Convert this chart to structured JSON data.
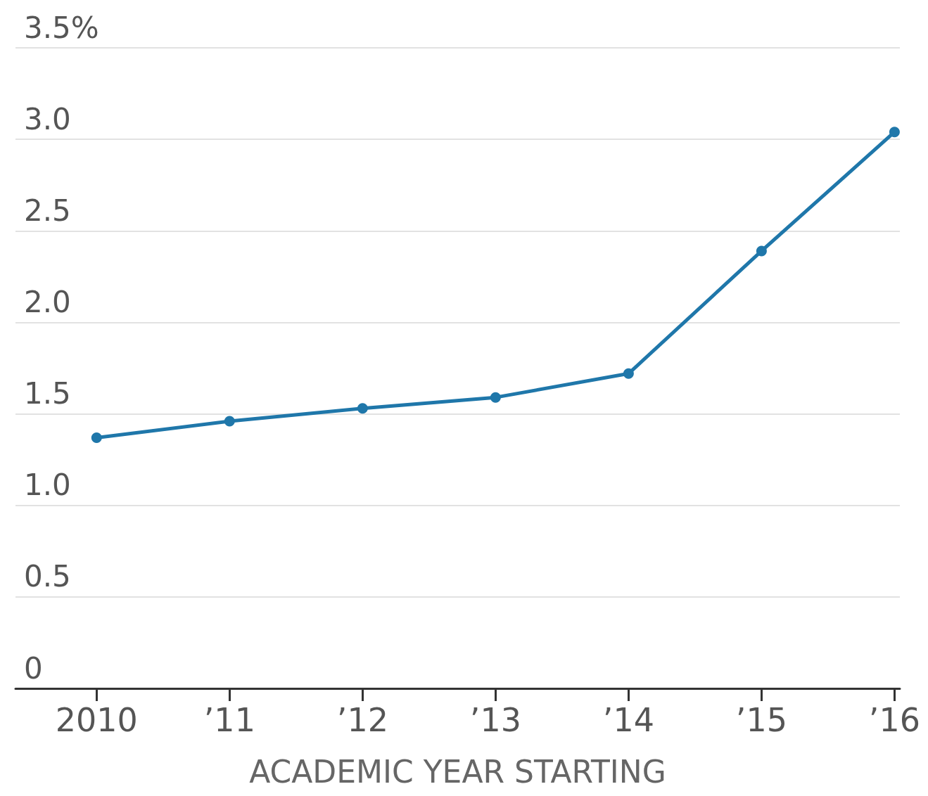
{
  "chart_data": {
    "type": "line",
    "xlabel": "ACADEMIC YEAR STARTING",
    "categories": [
      "2010",
      "’11",
      "’12",
      "’13",
      "’14",
      "’15",
      "’16"
    ],
    "series": [
      {
        "color": "#1f77aa",
        "values": [
          1.37,
          1.46,
          1.53,
          1.59,
          1.72,
          2.39,
          3.04
        ]
      }
    ],
    "ylim": [
      0,
      3.5
    ],
    "yticks": [
      0,
      0.5,
      {
        "value": 1,
        "label": "1.0"
      },
      1.5,
      {
        "value": 2,
        "label": "2.0"
      },
      2.5,
      {
        "value": 3,
        "label": "3.0"
      },
      {
        "value": 3.5,
        "label": "3.5%"
      }
    ],
    "grid": "y",
    "marker": "circle",
    "line_style": "solid"
  }
}
